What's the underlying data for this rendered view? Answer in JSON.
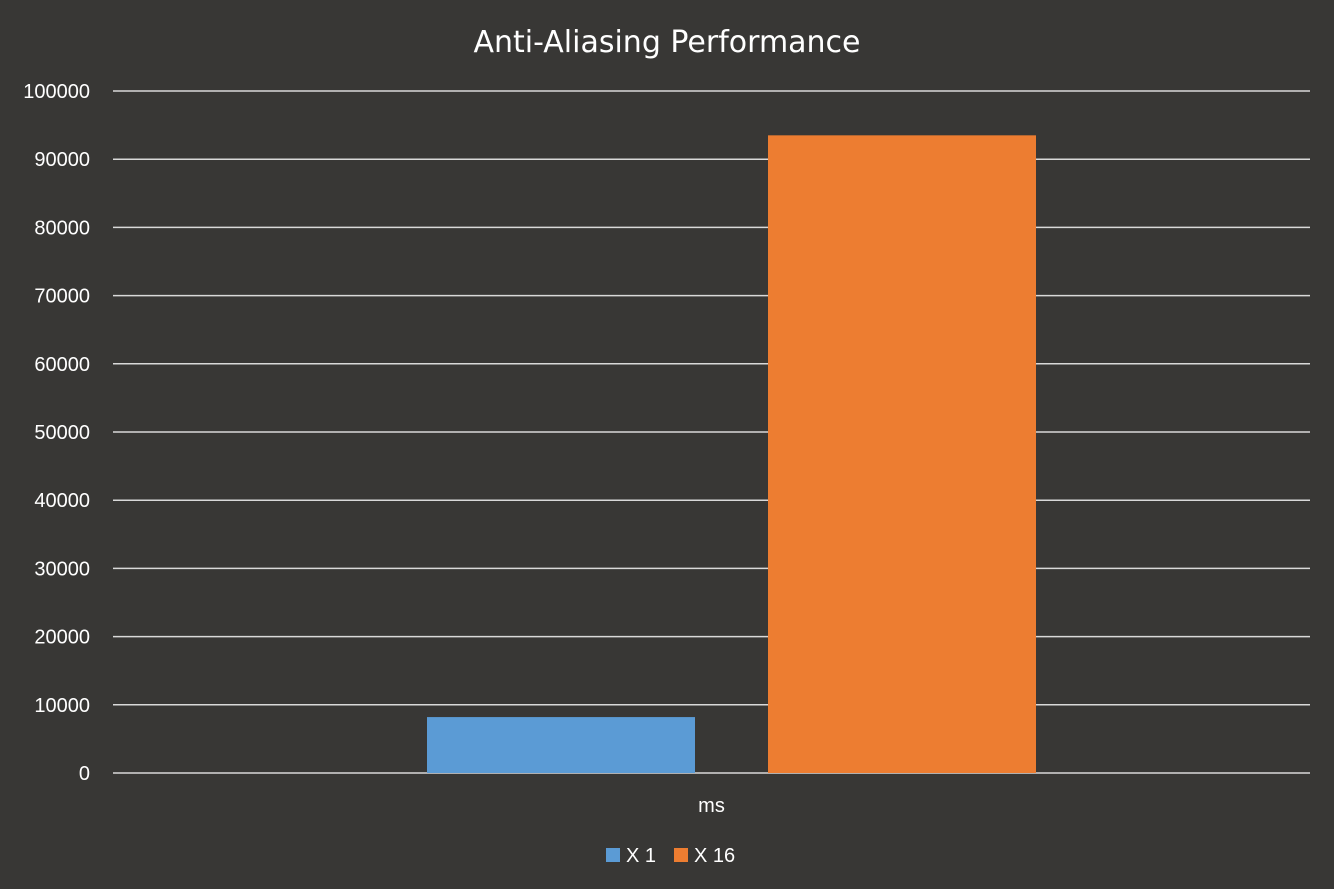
{
  "chart_data": {
    "type": "bar",
    "title": "Anti-Aliasing Performance",
    "categories": [
      "ms"
    ],
    "series": [
      {
        "name": "X 1",
        "values": [
          8200
        ],
        "color": "#5b9bd5"
      },
      {
        "name": "X 16",
        "values": [
          93500
        ],
        "color": "#ed7d31"
      }
    ],
    "xlabel": "",
    "ylabel": "",
    "ylim": [
      0,
      100000
    ],
    "yticks": [
      "0",
      "10000",
      "20000",
      "30000",
      "40000",
      "50000",
      "60000",
      "70000",
      "80000",
      "90000",
      "100000"
    ],
    "grid": true,
    "legend": "bottom"
  },
  "colors": {
    "background": "#383735",
    "text": "#ffffff",
    "gridline": "#d9d9d9"
  }
}
